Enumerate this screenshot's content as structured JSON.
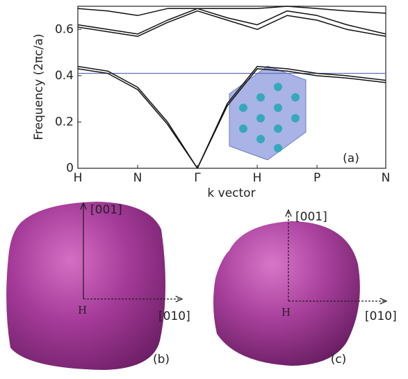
{
  "chart_data": {
    "type": "line",
    "y_label": "Frequency (2πc/a)",
    "x_label": "k vector",
    "annotation": "(a)",
    "x": [
      0,
      0.5,
      1,
      1.5,
      2,
      2.5,
      3,
      3.5,
      4,
      4.5,
      5.15
    ],
    "xlim": [
      0,
      5.15
    ],
    "xticks": [
      {
        "value": 0,
        "label": "H"
      },
      {
        "value": 1,
        "label": "N"
      },
      {
        "value": 2,
        "label": "Γ"
      },
      {
        "value": 3,
        "label": "H"
      },
      {
        "value": 4,
        "label": "P"
      },
      {
        "value": 5.15,
        "label": "N"
      }
    ],
    "ylim": [
      0,
      0.7
    ],
    "yticks": [
      0,
      0.2,
      0.4,
      0.6
    ],
    "reference_line": {
      "value": 0.41,
      "color": "#5b6fba"
    },
    "series": [
      {
        "color": "#111111",
        "values": [
          0.44,
          0.42,
          0.35,
          0.2,
          0,
          0.28,
          0.44,
          0.43,
          0.41,
          0.4,
          0.38
        ]
      },
      {
        "color": "#111111",
        "values": [
          0.43,
          0.41,
          0.34,
          0.19,
          0,
          0.27,
          0.43,
          0.42,
          0.4,
          0.39,
          0.37
        ]
      },
      {
        "color": "#111111",
        "values": [
          0.61,
          0.59,
          0.57,
          0.63,
          0.68,
          0.64,
          0.6,
          0.66,
          0.64,
          0.6,
          0.57
        ]
      },
      {
        "color": "#111111",
        "values": [
          0.62,
          0.6,
          0.58,
          0.64,
          0.69,
          0.65,
          0.62,
          0.68,
          0.66,
          0.62,
          0.58
        ]
      },
      {
        "color": "#111111",
        "values": [
          0.69,
          0.68,
          0.66,
          0.69,
          0.69,
          0.69,
          0.69,
          0.7,
          0.69,
          0.68,
          0.67
        ]
      }
    ]
  },
  "panels": {
    "b": {
      "axis_up": "[001]",
      "axis_right": "[010]",
      "origin": "H",
      "label": "(b)"
    },
    "c": {
      "axis_up": "[001]",
      "axis_right": "[010]",
      "origin": "H",
      "label": "(c)"
    }
  }
}
